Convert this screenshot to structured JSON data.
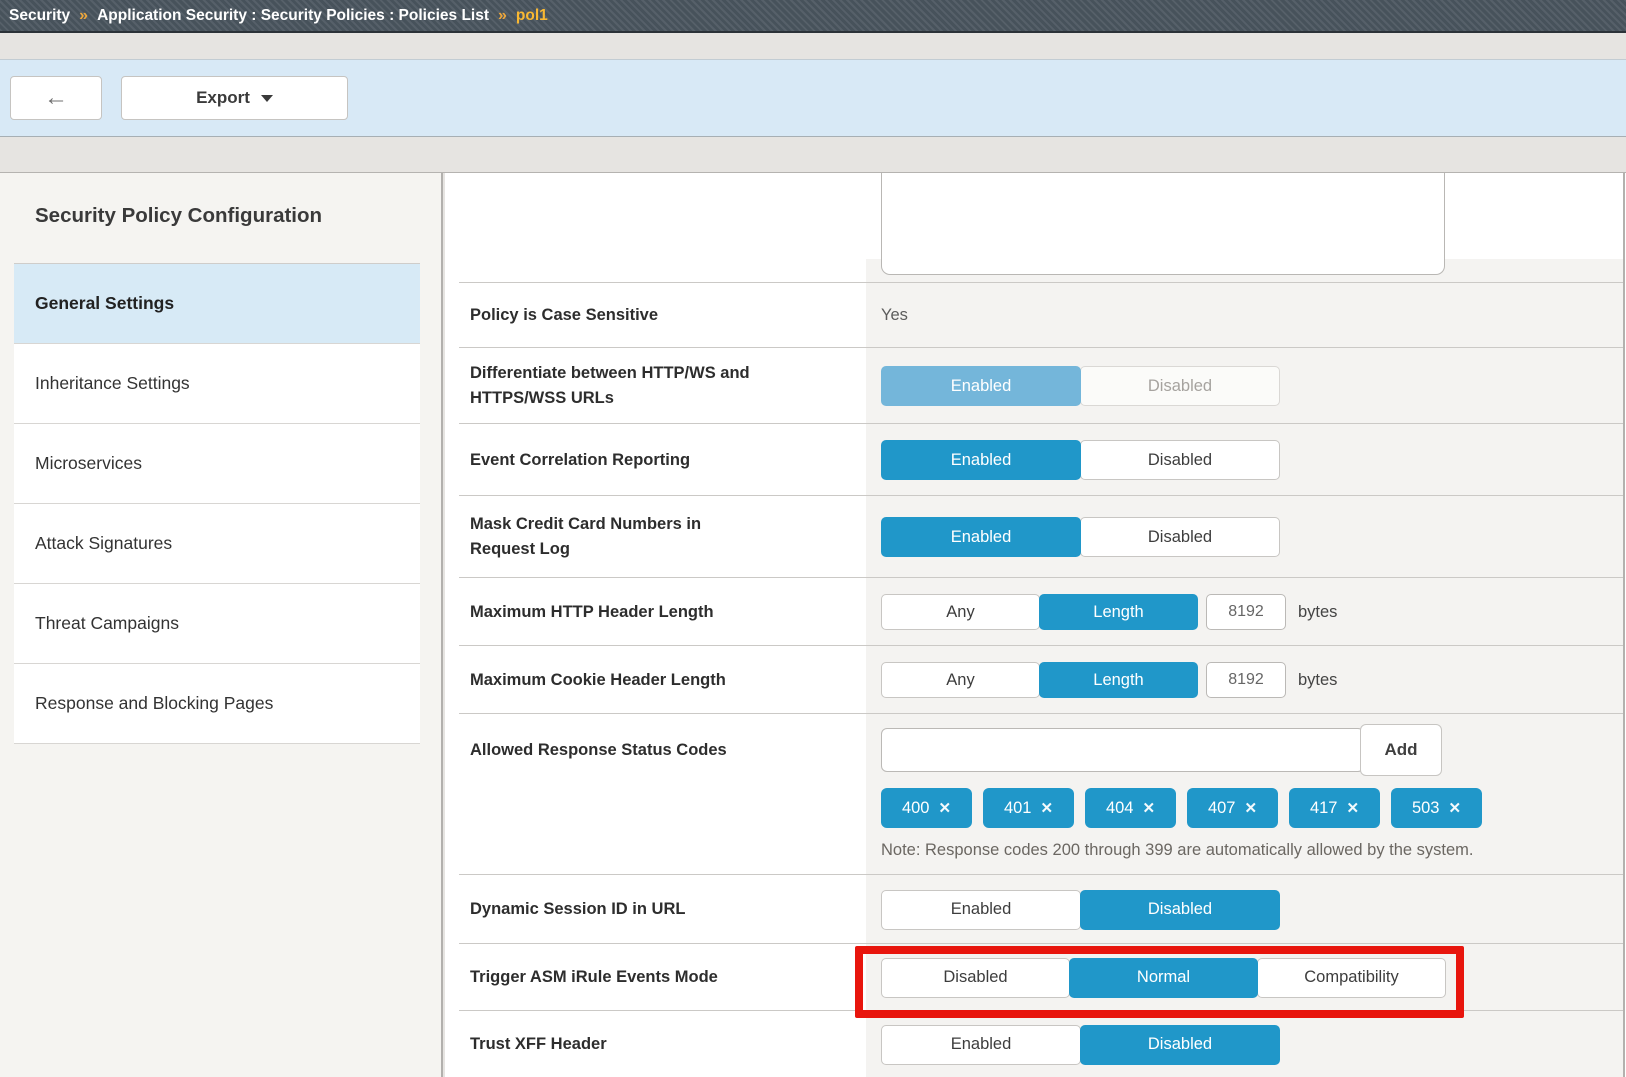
{
  "breadcrumb": {
    "separator": "»",
    "segments": [
      {
        "text": "Security"
      },
      {
        "text": "Application Security : Security Policies : Policies List"
      },
      {
        "text": "pol1",
        "highlight": true
      }
    ]
  },
  "toolbar": {
    "back_icon": "←",
    "export_label": "Export"
  },
  "sidebar": {
    "title": "Security Policy Configuration",
    "items": [
      {
        "label": "General Settings",
        "selected": true
      },
      {
        "label": "Inheritance Settings",
        "selected": false
      },
      {
        "label": "Microservices",
        "selected": false
      },
      {
        "label": "Attack Signatures",
        "selected": false
      },
      {
        "label": "Threat Campaigns",
        "selected": false
      },
      {
        "label": "Response and Blocking Pages",
        "selected": false
      }
    ]
  },
  "settings": {
    "rows": [
      {
        "type": "partial_input",
        "value": ""
      },
      {
        "type": "static",
        "label": "Policy is Case Sensitive",
        "value": "Yes"
      },
      {
        "type": "toggle",
        "label": "Differentiate between HTTP/WS and HTTPS/WSS URLs",
        "state": "read-only",
        "options": [
          {
            "label": "Enabled",
            "active": true
          },
          {
            "label": "Disabled",
            "active": false
          }
        ]
      },
      {
        "type": "toggle",
        "label": "Event Correlation Reporting",
        "options": [
          {
            "label": "Enabled",
            "active": true
          },
          {
            "label": "Disabled",
            "active": false
          }
        ]
      },
      {
        "type": "toggle",
        "label": "Mask Credit Card Numbers in Request Log",
        "options": [
          {
            "label": "Enabled",
            "active": true
          },
          {
            "label": "Disabled",
            "active": false
          }
        ]
      },
      {
        "type": "length",
        "label": "Maximum HTTP Header Length",
        "options": [
          {
            "label": "Any",
            "active": false
          },
          {
            "label": "Length",
            "active": true
          }
        ],
        "value": "8192",
        "suffix": "bytes"
      },
      {
        "type": "length",
        "label": "Maximum Cookie Header Length",
        "options": [
          {
            "label": "Any",
            "active": false
          },
          {
            "label": "Length",
            "active": true
          }
        ],
        "value": "8192",
        "suffix": "bytes"
      },
      {
        "type": "codes",
        "label": "Allowed Response Status Codes",
        "input_value": "",
        "add_label": "Add",
        "codes": [
          "400",
          "401",
          "404",
          "407",
          "417",
          "503"
        ],
        "remove_icon": "✕",
        "note": "Note: Response codes 200 through 399 are automatically allowed by the system."
      },
      {
        "type": "toggle",
        "label": "Dynamic Session ID in URL",
        "options": [
          {
            "label": "Enabled",
            "active": false
          },
          {
            "label": "Disabled",
            "active": true
          }
        ]
      },
      {
        "type": "toggle",
        "label": "Trigger ASM iRule Events Mode",
        "highlighted": true,
        "options": [
          {
            "label": "Disabled",
            "active": false
          },
          {
            "label": "Normal",
            "active": true
          },
          {
            "label": "Compatibility",
            "active": false
          }
        ]
      },
      {
        "type": "toggle",
        "label": "Trust XFF Header",
        "options": [
          {
            "label": "Enabled",
            "active": false
          },
          {
            "label": "Disabled",
            "active": true
          }
        ]
      }
    ]
  },
  "colors": {
    "accent_blue": "#2097c9",
    "muted_blue": "#74b6da",
    "highlight_red": "#e8150d",
    "breadcrumb_gold": "#f9b832",
    "toolbar_blue": "#d8e9f6",
    "selected_nav_blue": "#d7eaf6"
  }
}
